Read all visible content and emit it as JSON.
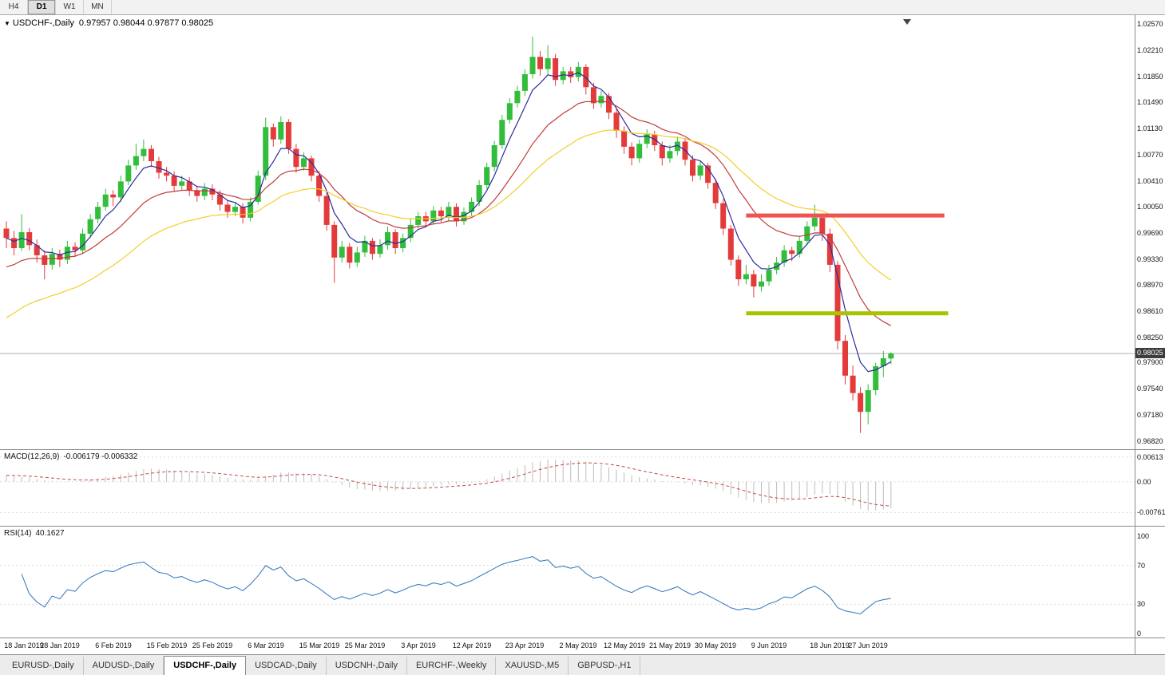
{
  "toolbar": {
    "timeframes": [
      {
        "label": "H4",
        "active": false
      },
      {
        "label": "D1",
        "active": true
      },
      {
        "label": "W1",
        "active": false
      },
      {
        "label": "MN",
        "active": false
      }
    ]
  },
  "chart_data": [
    {
      "type": "candlestick",
      "title": "USDCHF-,Daily",
      "ohlc_display": "0.97957 0.98044 0.97877 0.98025",
      "current_price_display": "0.98025",
      "current_price": 0.98025,
      "up_color": "#32BE3C",
      "down_color": "#E33B3B",
      "y_axis": {
        "max": 1.0264,
        "min": 0.9676,
        "labels": [
          "1.02570",
          "1.02210",
          "1.01850",
          "1.01490",
          "1.01130",
          "1.00770",
          "1.00410",
          "1.00050",
          "0.99690",
          "0.99330",
          "0.98970",
          "0.98610",
          "0.98250",
          "0.97900",
          "0.97540",
          "0.97180",
          "0.96820"
        ]
      },
      "x_labels": [
        {
          "text": "18 Jan 2019",
          "index": 1
        },
        {
          "text": "28 Jan 2019",
          "index": 7
        },
        {
          "text": "6 Feb 2019",
          "index": 14
        },
        {
          "text": "15 Feb 2019",
          "index": 21
        },
        {
          "text": "25 Feb 2019",
          "index": 27
        },
        {
          "text": "6 Mar 2019",
          "index": 34
        },
        {
          "text": "15 Mar 2019",
          "index": 41
        },
        {
          "text": "25 Mar 2019",
          "index": 47
        },
        {
          "text": "3 Apr 2019",
          "index": 54
        },
        {
          "text": "12 Apr 2019",
          "index": 61
        },
        {
          "text": "23 Apr 2019",
          "index": 68
        },
        {
          "text": "2 May 2019",
          "index": 75
        },
        {
          "text": "12 May 2019",
          "index": 81
        },
        {
          "text": "21 May 2019",
          "index": 87
        },
        {
          "text": "30 May 2019",
          "index": 93
        },
        {
          "text": "9 Jun 2019",
          "index": 100
        },
        {
          "text": "18 Jun 2019",
          "index": 108
        },
        {
          "text": "27 Jun 2019",
          "index": 113
        }
      ],
      "moving_averages": [
        {
          "period": 5,
          "color": "#2B2B9E",
          "seed_offset": 0
        },
        {
          "period": 15,
          "color": "#C13B3B",
          "seed_offset": -0.004
        },
        {
          "period": 30,
          "color": "#F2CE2B",
          "seed_offset": -0.011
        }
      ],
      "hlines": [
        {
          "name": "resistance-line",
          "price": 0.9993,
          "from_index": 97,
          "to_index": 123,
          "color": "#EF5350",
          "thickness": 5
        },
        {
          "name": "support-line",
          "price": 0.9858,
          "from_index": 97,
          "to_index": 123.5,
          "color": "#A8C400",
          "thickness": 5
        }
      ],
      "candles": [
        [
          0.9975,
          0.9985,
          0.9948,
          0.9962
        ],
        [
          0.9962,
          0.9972,
          0.9938,
          0.9948
        ],
        [
          0.9948,
          0.9995,
          0.9944,
          0.997
        ],
        [
          0.997,
          0.9976,
          0.9945,
          0.9952
        ],
        [
          0.9952,
          0.996,
          0.9928,
          0.9938
        ],
        [
          0.9938,
          0.9945,
          0.9905,
          0.9925
        ],
        [
          0.9925,
          0.9948,
          0.9918,
          0.994
        ],
        [
          0.994,
          0.9946,
          0.9922,
          0.9932
        ],
        [
          0.9932,
          0.9958,
          0.9926,
          0.995
        ],
        [
          0.995,
          0.9956,
          0.9936,
          0.9945
        ],
        [
          0.9945,
          0.9975,
          0.994,
          0.9968
        ],
        [
          0.9968,
          0.9995,
          0.9962,
          0.9988
        ],
        [
          0.9988,
          1.0012,
          0.9982,
          1.0005
        ],
        [
          1.0005,
          1.003,
          1.0,
          1.0022
        ],
        [
          1.0022,
          1.0028,
          1.0006,
          1.0018
        ],
        [
          1.0018,
          1.0048,
          1.0012,
          1.004
        ],
        [
          1.004,
          1.007,
          1.0035,
          1.0062
        ],
        [
          1.0062,
          1.0092,
          1.0056,
          1.0075
        ],
        [
          1.0075,
          1.0098,
          1.0068,
          1.0085
        ],
        [
          1.0085,
          1.009,
          1.006,
          1.0068
        ],
        [
          1.0068,
          1.0074,
          1.0044,
          1.0052
        ],
        [
          1.0052,
          1.006,
          1.004,
          1.0048
        ],
        [
          1.0048,
          1.0054,
          1.0026,
          1.0034
        ],
        [
          1.0034,
          1.0048,
          1.0028,
          1.004
        ],
        [
          1.004,
          1.0046,
          1.002,
          1.0028
        ],
        [
          1.0028,
          1.0034,
          1.0012,
          1.002
        ],
        [
          1.002,
          1.0038,
          1.0014,
          1.003
        ],
        [
          1.003,
          1.0036,
          1.0014,
          1.0022
        ],
        [
          1.0022,
          1.0028,
          1.0,
          1.0008
        ],
        [
          1.0008,
          1.0014,
          0.999,
          0.9998
        ],
        [
          0.9998,
          1.0012,
          0.9992,
          1.0005
        ],
        [
          1.0005,
          1.001,
          0.9982,
          0.999
        ],
        [
          0.999,
          1.0018,
          0.9985,
          1.0012
        ],
        [
          1.0012,
          1.0055,
          1.0008,
          1.0048
        ],
        [
          1.0048,
          1.0128,
          1.0042,
          1.0115
        ],
        [
          1.0115,
          1.012,
          1.0088,
          1.0098
        ],
        [
          1.0098,
          1.013,
          1.0092,
          1.0122
        ],
        [
          1.0122,
          1.0126,
          1.0078,
          1.0085
        ],
        [
          1.0085,
          1.0092,
          1.0052,
          1.006
        ],
        [
          1.006,
          1.008,
          1.0055,
          1.0072
        ],
        [
          1.0072,
          1.0076,
          1.004,
          1.0048
        ],
        [
          1.0048,
          1.0054,
          1.0012,
          1.002
        ],
        [
          1.002,
          1.0026,
          0.9972,
          0.998
        ],
        [
          0.998,
          0.9985,
          0.99,
          0.9935
        ],
        [
          0.9935,
          0.9958,
          0.9928,
          0.995
        ],
        [
          0.995,
          0.9955,
          0.992,
          0.9928
        ],
        [
          0.9928,
          0.995,
          0.9922,
          0.9942
        ],
        [
          0.9942,
          0.9965,
          0.9936,
          0.9958
        ],
        [
          0.9958,
          0.9962,
          0.9932,
          0.994
        ],
        [
          0.994,
          0.996,
          0.9935,
          0.9952
        ],
        [
          0.9952,
          0.9978,
          0.9946,
          0.997
        ],
        [
          0.997,
          0.9974,
          0.994,
          0.9948
        ],
        [
          0.9948,
          0.9968,
          0.9942,
          0.9962
        ],
        [
          0.9962,
          0.9988,
          0.9956,
          0.998
        ],
        [
          0.998,
          0.9998,
          0.9975,
          0.9992
        ],
        [
          0.9992,
          0.9998,
          0.9978,
          0.9985
        ],
        [
          0.9985,
          1.0006,
          0.998,
          1.0
        ],
        [
          1.0,
          1.0005,
          0.9984,
          0.9992
        ],
        [
          0.9992,
          1.0012,
          0.9986,
          1.0005
        ],
        [
          1.0005,
          1.001,
          0.9978,
          0.9985
        ],
        [
          0.9985,
          1.0004,
          0.998,
          0.9998
        ],
        [
          0.9998,
          1.0018,
          0.9992,
          1.0012
        ],
        [
          1.0012,
          1.0042,
          1.0006,
          1.0035
        ],
        [
          1.0035,
          1.0066,
          1.003,
          1.006
        ],
        [
          1.006,
          1.0096,
          1.0054,
          1.009
        ],
        [
          1.009,
          1.0132,
          1.0085,
          1.0125
        ],
        [
          1.0125,
          1.0155,
          1.012,
          1.0148
        ],
        [
          1.0148,
          1.0172,
          1.0142,
          1.0165
        ],
        [
          1.0165,
          1.0195,
          1.0158,
          1.0188
        ],
        [
          1.0188,
          1.024,
          1.0182,
          1.0212
        ],
        [
          1.0212,
          1.022,
          1.0186,
          1.0195
        ],
        [
          1.0195,
          1.0228,
          1.0188,
          1.021
        ],
        [
          1.021,
          1.0216,
          1.0172,
          1.018
        ],
        [
          1.018,
          1.0198,
          1.0174,
          1.0192
        ],
        [
          1.0192,
          1.0198,
          1.0176,
          1.0184
        ],
        [
          1.0184,
          1.0205,
          1.0178,
          1.0198
        ],
        [
          1.0198,
          1.0202,
          1.016,
          1.017
        ],
        [
          1.017,
          1.0176,
          1.014,
          1.0148
        ],
        [
          1.0148,
          1.0165,
          1.0142,
          1.0158
        ],
        [
          1.0158,
          1.0162,
          1.0126,
          1.0135
        ],
        [
          1.0135,
          1.014,
          1.01,
          1.011
        ],
        [
          1.011,
          1.0116,
          1.0078,
          1.0088
        ],
        [
          1.0088,
          1.0094,
          1.0062,
          1.0072
        ],
        [
          1.0072,
          1.0098,
          1.0066,
          1.0092
        ],
        [
          1.0092,
          1.0112,
          1.0086,
          1.0105
        ],
        [
          1.0105,
          1.011,
          1.0082,
          1.009
        ],
        [
          1.009,
          1.0095,
          1.0062,
          1.0072
        ],
        [
          1.0072,
          1.009,
          1.0066,
          1.0082
        ],
        [
          1.0082,
          1.0102,
          1.0076,
          1.0095
        ],
        [
          1.0095,
          1.01,
          1.0062,
          1.007
        ],
        [
          1.007,
          1.0076,
          1.004,
          1.0048
        ],
        [
          1.0048,
          1.0068,
          1.0042,
          1.0062
        ],
        [
          1.0062,
          1.0066,
          1.003,
          1.0038
        ],
        [
          1.0038,
          1.0044,
          1.0002,
          1.001
        ],
        [
          1.001,
          1.0016,
          0.9966,
          0.9975
        ],
        [
          0.9975,
          0.998,
          0.9924,
          0.9932
        ],
        [
          0.9932,
          0.9938,
          0.9896,
          0.9905
        ],
        [
          0.9905,
          0.9925,
          0.9898,
          0.9912
        ],
        [
          0.9912,
          0.9918,
          0.988,
          0.9895
        ],
        [
          0.9895,
          0.9912,
          0.9888,
          0.9902
        ],
        [
          0.9902,
          0.9925,
          0.9896,
          0.9918
        ],
        [
          0.9918,
          0.9936,
          0.9912,
          0.9928
        ],
        [
          0.9928,
          0.9952,
          0.9922,
          0.9945
        ],
        [
          0.9945,
          0.995,
          0.993,
          0.994
        ],
        [
          0.994,
          0.9965,
          0.9935,
          0.9958
        ],
        [
          0.9958,
          0.9985,
          0.9952,
          0.9978
        ],
        [
          0.9978,
          1.0008,
          0.9972,
          0.999
        ],
        [
          0.999,
          0.9996,
          0.9958,
          0.9968
        ],
        [
          0.9968,
          0.9975,
          0.9915,
          0.9925
        ],
        [
          0.9925,
          0.993,
          0.9808,
          0.982
        ],
        [
          0.982,
          0.9828,
          0.976,
          0.9772
        ],
        [
          0.9772,
          0.9786,
          0.9738,
          0.9748
        ],
        [
          0.9748,
          0.9756,
          0.9693,
          0.9722
        ],
        [
          0.9722,
          0.976,
          0.9705,
          0.9752
        ],
        [
          0.9752,
          0.979,
          0.9745,
          0.9785
        ],
        [
          0.9785,
          0.9806,
          0.977,
          0.9796
        ],
        [
          0.97957,
          0.98044,
          0.97877,
          0.98025
        ]
      ]
    },
    {
      "type": "macd",
      "title": "MACD(12,26,9)",
      "values_display": "-0.006179 -0.006332",
      "params": {
        "fast": 12,
        "slow": 26,
        "signal": 9
      },
      "range": {
        "max": 0.00685,
        "min": -0.0085
      },
      "y_labels": [
        {
          "text": "0.00613",
          "value": 0.00613
        },
        {
          "text": "0.00",
          "value": 0
        },
        {
          "text": "-0.00761",
          "value": -0.00761
        }
      ],
      "hist_color": "#BDBDBD",
      "signal_color": "#C84848"
    },
    {
      "type": "rsi",
      "title": "RSI(14)",
      "value_display": "40.1627",
      "period": 14,
      "range": {
        "max": 100,
        "min": 0
      },
      "y_labels": [
        {
          "text": "100",
          "value": 100
        },
        {
          "text": "70",
          "value": 70
        },
        {
          "text": "30",
          "value": 30
        },
        {
          "text": "0",
          "value": 0
        }
      ],
      "levels": [
        70,
        30
      ],
      "line_color": "#3E7EC1"
    }
  ],
  "tabs": {
    "items": [
      {
        "label": "EURUSD-,Daily",
        "active": false
      },
      {
        "label": "AUDUSD-,Daily",
        "active": false
      },
      {
        "label": "USDCHF-,Daily",
        "active": true
      },
      {
        "label": "USDCAD-,Daily",
        "active": false
      },
      {
        "label": "USDCNH-,Daily",
        "active": false
      },
      {
        "label": "EURCHF-,Weekly",
        "active": false
      },
      {
        "label": "XAUUSD-,M5",
        "active": false
      },
      {
        "label": "GBPUSD-,H1",
        "active": false
      }
    ]
  }
}
